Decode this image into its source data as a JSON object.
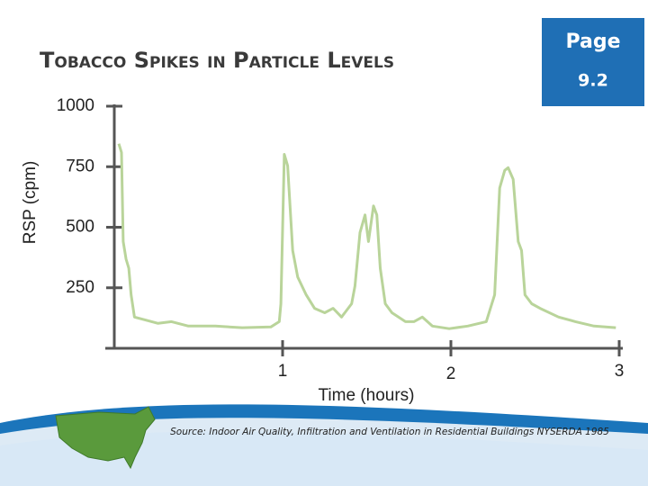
{
  "slide": {
    "badge": {
      "line1": "Page",
      "line2": "9.2"
    },
    "source": "Source: Indoor Air Quality, Infiltration and Ventilation in Residential Buildings NYSERDA 1985"
  },
  "chart_data": {
    "type": "line",
    "title": "Tobacco Spikes in Particle Levels",
    "x_label": "Time (hours)",
    "y_label": "RSP (cpm)",
    "x": [
      0.027,
      0.043,
      0.053,
      0.07,
      0.086,
      0.1,
      0.12,
      0.18,
      0.26,
      0.34,
      0.44,
      0.6,
      0.76,
      0.93,
      0.98,
      0.99,
      1.01,
      1.03,
      1.06,
      1.09,
      1.14,
      1.19,
      1.25,
      1.3,
      1.35,
      1.41,
      1.43,
      1.46,
      1.49,
      1.51,
      1.54,
      1.56,
      1.58,
      1.61,
      1.65,
      1.73,
      1.78,
      1.83,
      1.89,
      1.99,
      2.1,
      2.21,
      2.26,
      2.29,
      2.32,
      2.34,
      2.37,
      2.4,
      2.42,
      2.44,
      2.48,
      2.53,
      2.64,
      2.74,
      2.85,
      2.98
    ],
    "values": [
      845,
      809,
      441,
      368,
      331,
      221,
      129,
      118,
      103,
      110,
      92,
      92,
      85,
      88,
      110,
      184,
      801,
      754,
      404,
      294,
      221,
      165,
      147,
      165,
      129,
      184,
      257,
      478,
      551,
      441,
      588,
      551,
      331,
      184,
      147,
      110,
      110,
      129,
      92,
      81,
      92,
      110,
      221,
      662,
      735,
      746,
      698,
      441,
      404,
      221,
      184,
      165,
      129,
      110,
      92,
      85
    ],
    "color": "#b9d49a",
    "xlim": [
      0,
      3
    ],
    "xticks": [
      1,
      2,
      3
    ],
    "ylim": [
      0,
      1000
    ],
    "yticks": [
      250,
      500,
      750,
      1000
    ]
  }
}
